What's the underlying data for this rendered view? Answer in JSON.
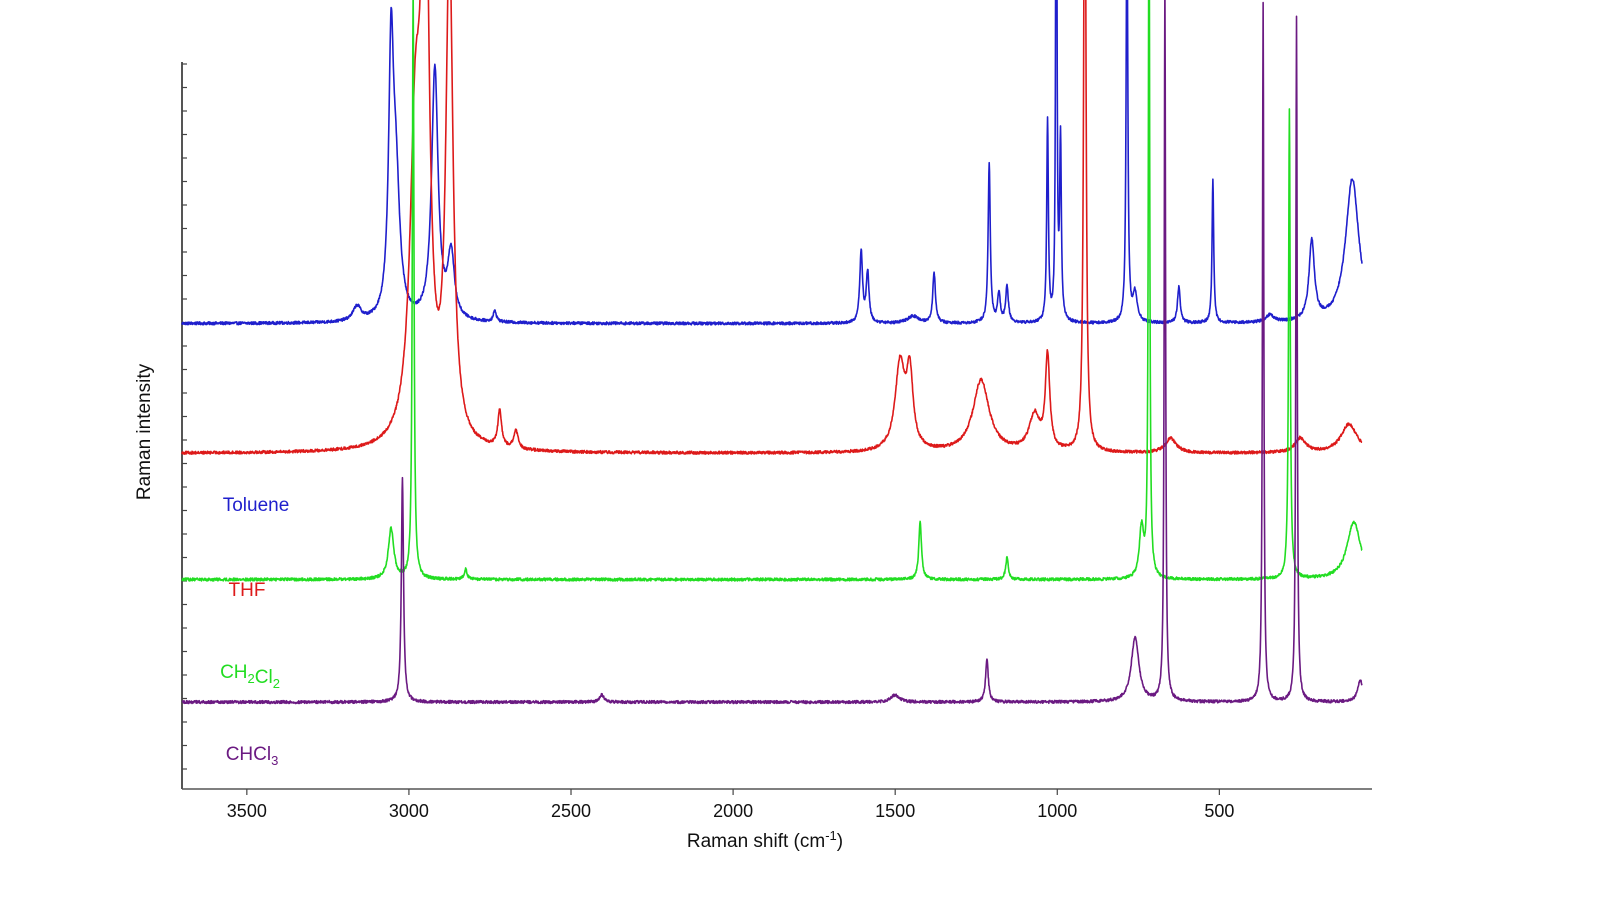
{
  "chart_data": {
    "type": "line",
    "title": "",
    "xlabel": "Raman shift (cm",
    "xlabel_sup": "-1",
    "xlabel_end": ")",
    "ylabel": "Raman intensity",
    "xlim": [
      3700,
      60
    ],
    "x_reversed": true,
    "y_ticks_labeled": false,
    "grid": false,
    "legend": "inline labels on left",
    "x_ticks": [
      {
        "value": 3500,
        "label": "3500"
      },
      {
        "value": 3000,
        "label": "3000"
      },
      {
        "value": 2500,
        "label": "2500"
      },
      {
        "value": 2000,
        "label": "2000"
      },
      {
        "value": 1500,
        "label": "1500"
      },
      {
        "value": 1000,
        "label": "1000"
      },
      {
        "value": 500,
        "label": "500"
      }
    ],
    "series": [
      {
        "name": "Toluene",
        "label_parts": [
          {
            "t": "Toluene",
            "sub": ""
          }
        ],
        "color": "#1f1fcc",
        "baseline": 0.64,
        "peaks": [
          [
            3160,
            0.02,
            15
          ],
          [
            3055,
            0.35,
            9
          ],
          [
            3040,
            0.18,
            14
          ],
          [
            2920,
            0.35,
            12
          ],
          [
            2870,
            0.09,
            12
          ],
          [
            2735,
            0.015,
            6
          ],
          [
            1605,
            0.1,
            5
          ],
          [
            1585,
            0.07,
            5
          ],
          [
            1445,
            0.01,
            20
          ],
          [
            1380,
            0.07,
            5
          ],
          [
            1210,
            0.22,
            4
          ],
          [
            1180,
            0.04,
            5
          ],
          [
            1155,
            0.05,
            5
          ],
          [
            1030,
            0.28,
            3
          ],
          [
            1003,
            0.99,
            2
          ],
          [
            990,
            0.25,
            3
          ],
          [
            785,
            0.6,
            3
          ],
          [
            760,
            0.04,
            8
          ],
          [
            625,
            0.05,
            5
          ],
          [
            520,
            0.2,
            3
          ],
          [
            345,
            0.01,
            15
          ],
          [
            215,
            0.11,
            10
          ],
          [
            90,
            0.2,
            25
          ]
        ]
      },
      {
        "name": "THF",
        "label_parts": [
          {
            "t": "THF",
            "sub": ""
          }
        ],
        "color": "#dd1a1a",
        "baseline": 0.46,
        "peaks": [
          [
            2980,
            0.4,
            20
          ],
          [
            2950,
            0.8,
            14
          ],
          [
            2875,
            0.68,
            13
          ],
          [
            2720,
            0.05,
            7
          ],
          [
            2670,
            0.025,
            8
          ],
          [
            1485,
            0.12,
            18
          ],
          [
            1455,
            0.1,
            12
          ],
          [
            1235,
            0.1,
            30
          ],
          [
            1070,
            0.05,
            20
          ],
          [
            1030,
            0.13,
            8
          ],
          [
            915,
            1.0,
            4
          ],
          [
            650,
            0.02,
            20
          ],
          [
            250,
            0.02,
            20
          ],
          [
            100,
            0.04,
            30
          ]
        ]
      },
      {
        "name": "CH2Cl2",
        "label_parts": [
          {
            "t": "CH",
            "sub": "2"
          },
          {
            "t": "Cl",
            "sub": "2"
          }
        ],
        "color": "#22dd22",
        "baseline": 0.285,
        "peaks": [
          [
            3055,
            0.07,
            10
          ],
          [
            2987,
            0.82,
            3
          ],
          [
            2825,
            0.015,
            5
          ],
          [
            1423,
            0.08,
            5
          ],
          [
            1155,
            0.03,
            5
          ],
          [
            740,
            0.07,
            8
          ],
          [
            717,
            1.0,
            2.5
          ],
          [
            284,
            0.65,
            3
          ],
          [
            85,
            0.08,
            25
          ]
        ]
      },
      {
        "name": "CHCl3",
        "label_parts": [
          {
            "t": "CHCl",
            "sub": "3"
          }
        ],
        "color": "#6b1a82",
        "baseline": 0.115,
        "peaks": [
          [
            3020,
            0.31,
            4
          ],
          [
            2405,
            0.01,
            8
          ],
          [
            1500,
            0.01,
            15
          ],
          [
            1217,
            0.06,
            5
          ],
          [
            760,
            0.09,
            14
          ],
          [
            668,
            1.0,
            2.5
          ],
          [
            365,
            0.97,
            2.5
          ],
          [
            262,
            0.95,
            2.5
          ],
          [
            65,
            0.03,
            10
          ]
        ]
      }
    ]
  }
}
